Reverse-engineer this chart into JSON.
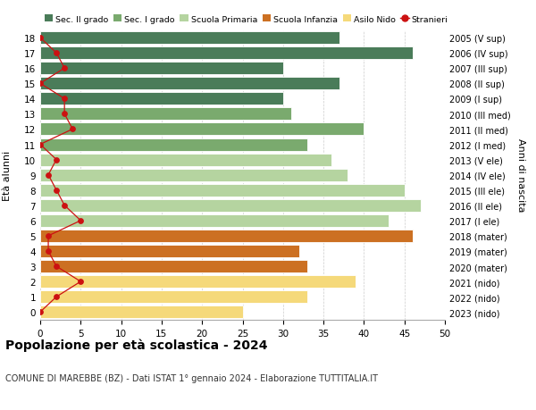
{
  "ages": [
    18,
    17,
    16,
    15,
    14,
    13,
    12,
    11,
    10,
    9,
    8,
    7,
    6,
    5,
    4,
    3,
    2,
    1,
    0
  ],
  "bar_values": [
    37,
    46,
    30,
    37,
    30,
    31,
    40,
    33,
    36,
    38,
    45,
    47,
    43,
    46,
    32,
    33,
    39,
    33,
    25
  ],
  "bar_colors": [
    "#4a7c59",
    "#4a7c59",
    "#4a7c59",
    "#4a7c59",
    "#4a7c59",
    "#7aaa6e",
    "#7aaa6e",
    "#7aaa6e",
    "#b5d4a0",
    "#b5d4a0",
    "#b5d4a0",
    "#b5d4a0",
    "#b5d4a0",
    "#cc7022",
    "#cc7022",
    "#cc7022",
    "#f5d97a",
    "#f5d97a",
    "#f5d97a"
  ],
  "right_labels": [
    "2005 (V sup)",
    "2006 (IV sup)",
    "2007 (III sup)",
    "2008 (II sup)",
    "2009 (I sup)",
    "2010 (III med)",
    "2011 (II med)",
    "2012 (I med)",
    "2013 (V ele)",
    "2014 (IV ele)",
    "2015 (III ele)",
    "2016 (II ele)",
    "2017 (I ele)",
    "2018 (mater)",
    "2019 (mater)",
    "2020 (mater)",
    "2021 (nido)",
    "2022 (nido)",
    "2023 (nido)"
  ],
  "stranieri_values": [
    0,
    2,
    3,
    0,
    3,
    3,
    4,
    0,
    2,
    1,
    2,
    3,
    5,
    1,
    1,
    2,
    5,
    2,
    0
  ],
  "legend_labels": [
    "Sec. II grado",
    "Sec. I grado",
    "Scuola Primaria",
    "Scuola Infanzia",
    "Asilo Nido",
    "Stranieri"
  ],
  "legend_colors": [
    "#4a7c59",
    "#7aaa6e",
    "#b5d4a0",
    "#cc7022",
    "#f5d97a",
    "#cc1111"
  ],
  "title": "Popolazione per età scolastica - 2024",
  "subtitle": "COMUNE DI MAREBBE (BZ) - Dati ISTAT 1° gennaio 2024 - Elaborazione TUTTITALIA.IT",
  "ylabel_left": "Età alunni",
  "ylabel_right": "Anni di nascita",
  "xlim": [
    0,
    50
  ],
  "xticks": [
    0,
    5,
    10,
    15,
    20,
    25,
    30,
    35,
    40,
    45,
    50
  ],
  "bg_color": "#ffffff",
  "bar_edge_color": "#ffffff",
  "grid_color": "#cccccc"
}
